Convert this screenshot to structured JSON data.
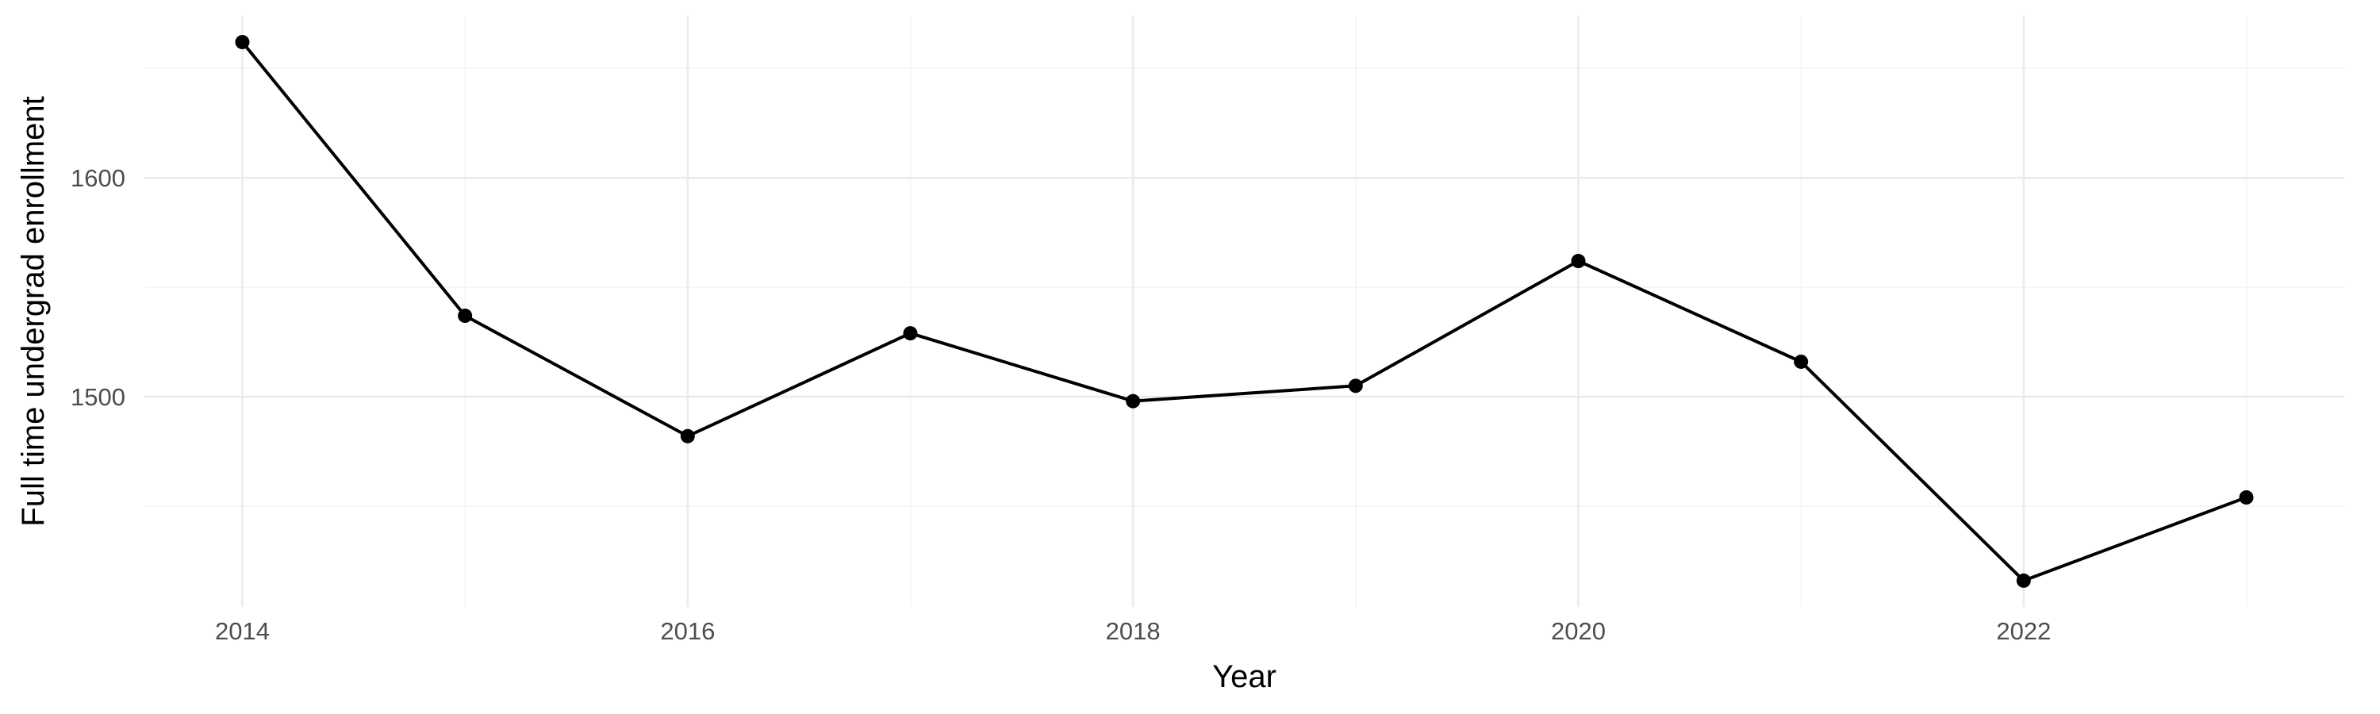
{
  "chart_data": {
    "type": "line",
    "title": "",
    "xlabel": "Year",
    "ylabel": "Full time undergrad enrollment",
    "x": [
      2014,
      2015,
      2016,
      2017,
      2018,
      2019,
      2020,
      2021,
      2022,
      2023
    ],
    "series": [
      {
        "values": [
          1662,
          1537,
          1482,
          1529,
          1498,
          1505,
          1562,
          1516,
          1416,
          1454
        ]
      }
    ],
    "xlim": [
      2013.56,
      2023.44
    ],
    "ylim": [
      1404,
      1674
    ],
    "x_ticks": [
      2014,
      2016,
      2018,
      2020,
      2022
    ],
    "x_tick_labels": [
      "2014",
      "2016",
      "2018",
      "2020",
      "2022"
    ],
    "x_minor_ticks": [
      2015,
      2017,
      2019,
      2021,
      2023
    ],
    "y_ticks": [
      1500,
      1600
    ],
    "y_tick_labels": [
      "1500",
      "1600"
    ],
    "y_minor_ticks": [
      1450,
      1550,
      1650
    ],
    "grid": true,
    "legend": "none",
    "colors": {
      "line": "#000000",
      "grid": "#ebebeb",
      "tick_text": "#4d4d4d",
      "background": "#ffffff"
    }
  }
}
